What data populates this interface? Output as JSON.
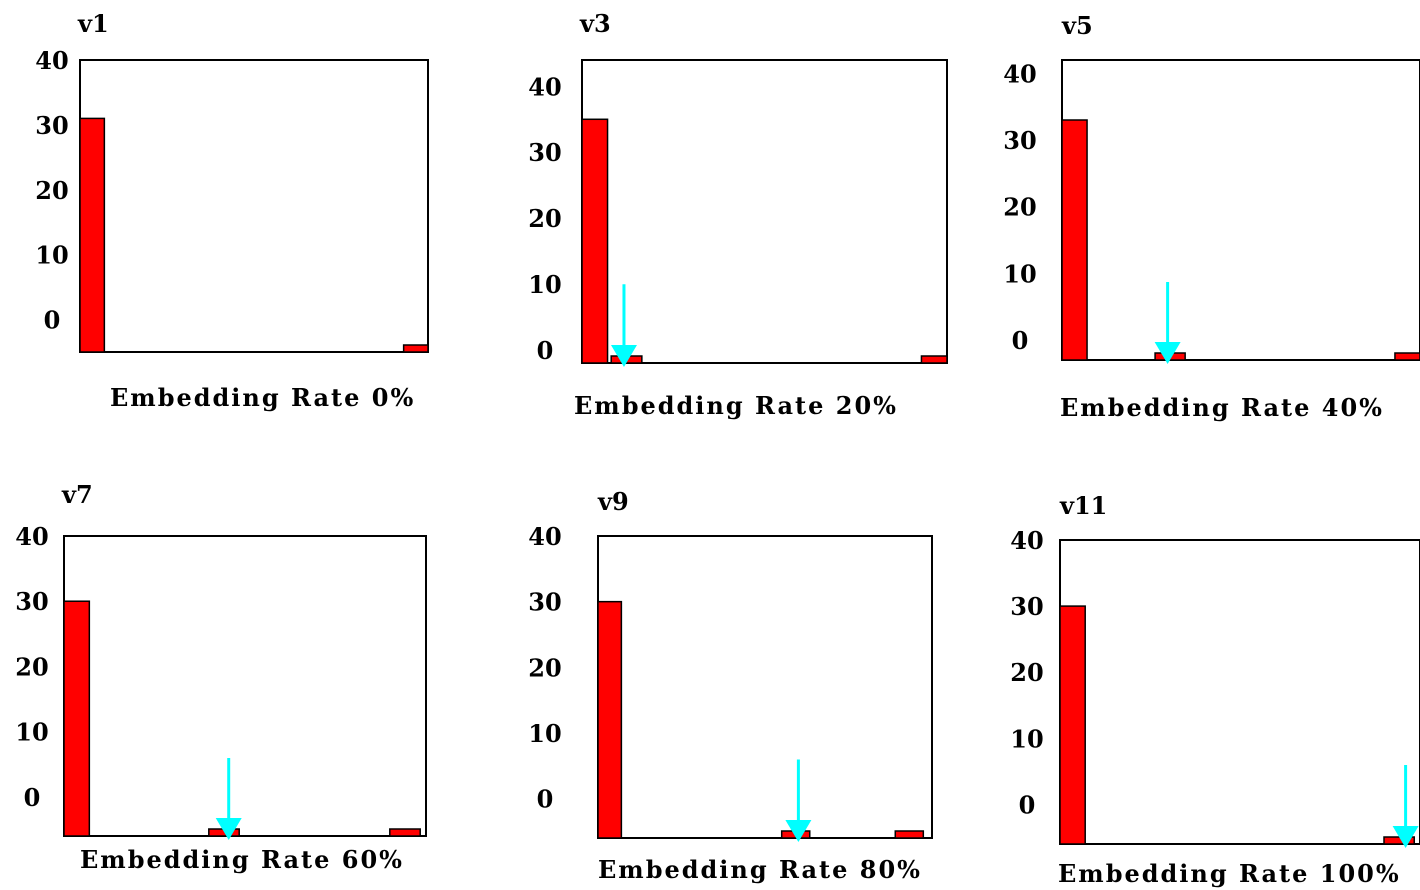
{
  "colors": {
    "bar": "#ff0000",
    "bar_outline": "#000000",
    "arrow": "#00ffff",
    "frame": "#000000"
  },
  "chart_data": [
    {
      "type": "bar",
      "title": "v1",
      "xlabel": "Embedding Rate 0%",
      "ylim": [
        -5,
        40
      ],
      "yticks": [
        "40",
        "30",
        "20",
        "10",
        "0"
      ],
      "bars": [
        {
          "x": 0.0,
          "value": 31
        },
        {
          "x": 0.93,
          "value": -4
        }
      ],
      "arrow_x": null
    },
    {
      "type": "bar",
      "title": "v3",
      "xlabel": "Embedding Rate 20%",
      "ylim": [
        -2,
        44
      ],
      "yticks": [
        "40",
        "30",
        "20",
        "10",
        "0"
      ],
      "bars": [
        {
          "x": 0.0,
          "value": 35
        },
        {
          "x": 0.08,
          "value": -1
        },
        {
          "x": 0.93,
          "value": -1
        }
      ],
      "arrow_x": 0.115
    },
    {
      "type": "bar",
      "title": "v5",
      "xlabel": "Embedding Rate 40%",
      "ylim": [
        -3,
        42
      ],
      "yticks": [
        "40",
        "30",
        "20",
        "10",
        "0"
      ],
      "bars": [
        {
          "x": 0.0,
          "value": 33
        },
        {
          "x": 0.26,
          "value": -2
        },
        {
          "x": 0.93,
          "value": -2
        }
      ],
      "arrow_x": 0.295
    },
    {
      "type": "bar",
      "title": "v7",
      "xlabel": "Embedding Rate 60%",
      "ylim": [
        -6,
        40
      ],
      "yticks": [
        "40",
        "30",
        "20",
        "10",
        "0"
      ],
      "bars": [
        {
          "x": 0.0,
          "value": 30
        },
        {
          "x": 0.4,
          "value": -5
        },
        {
          "x": 0.9,
          "value": -5
        }
      ],
      "arrow_x": 0.455
    },
    {
      "type": "bar",
      "title": "v9",
      "xlabel": "Embedding Rate 80%",
      "ylim": [
        -6,
        40
      ],
      "yticks": [
        "40",
        "30",
        "20",
        "10",
        "0"
      ],
      "bars": [
        {
          "x": 0.0,
          "value": 30
        },
        {
          "x": 0.55,
          "value": -5
        },
        {
          "x": 0.89,
          "value": -5
        }
      ],
      "arrow_x": 0.6
    },
    {
      "type": "bar",
      "title": "v11",
      "xlabel": "Embedding Rate 100%",
      "ylim": [
        -6,
        40
      ],
      "yticks": [
        "40",
        "30",
        "20",
        "10",
        "0"
      ],
      "bars": [
        {
          "x": 0.0,
          "value": 30
        },
        {
          "x": 0.9,
          "value": -5
        }
      ],
      "arrow_x": 0.96
    }
  ]
}
